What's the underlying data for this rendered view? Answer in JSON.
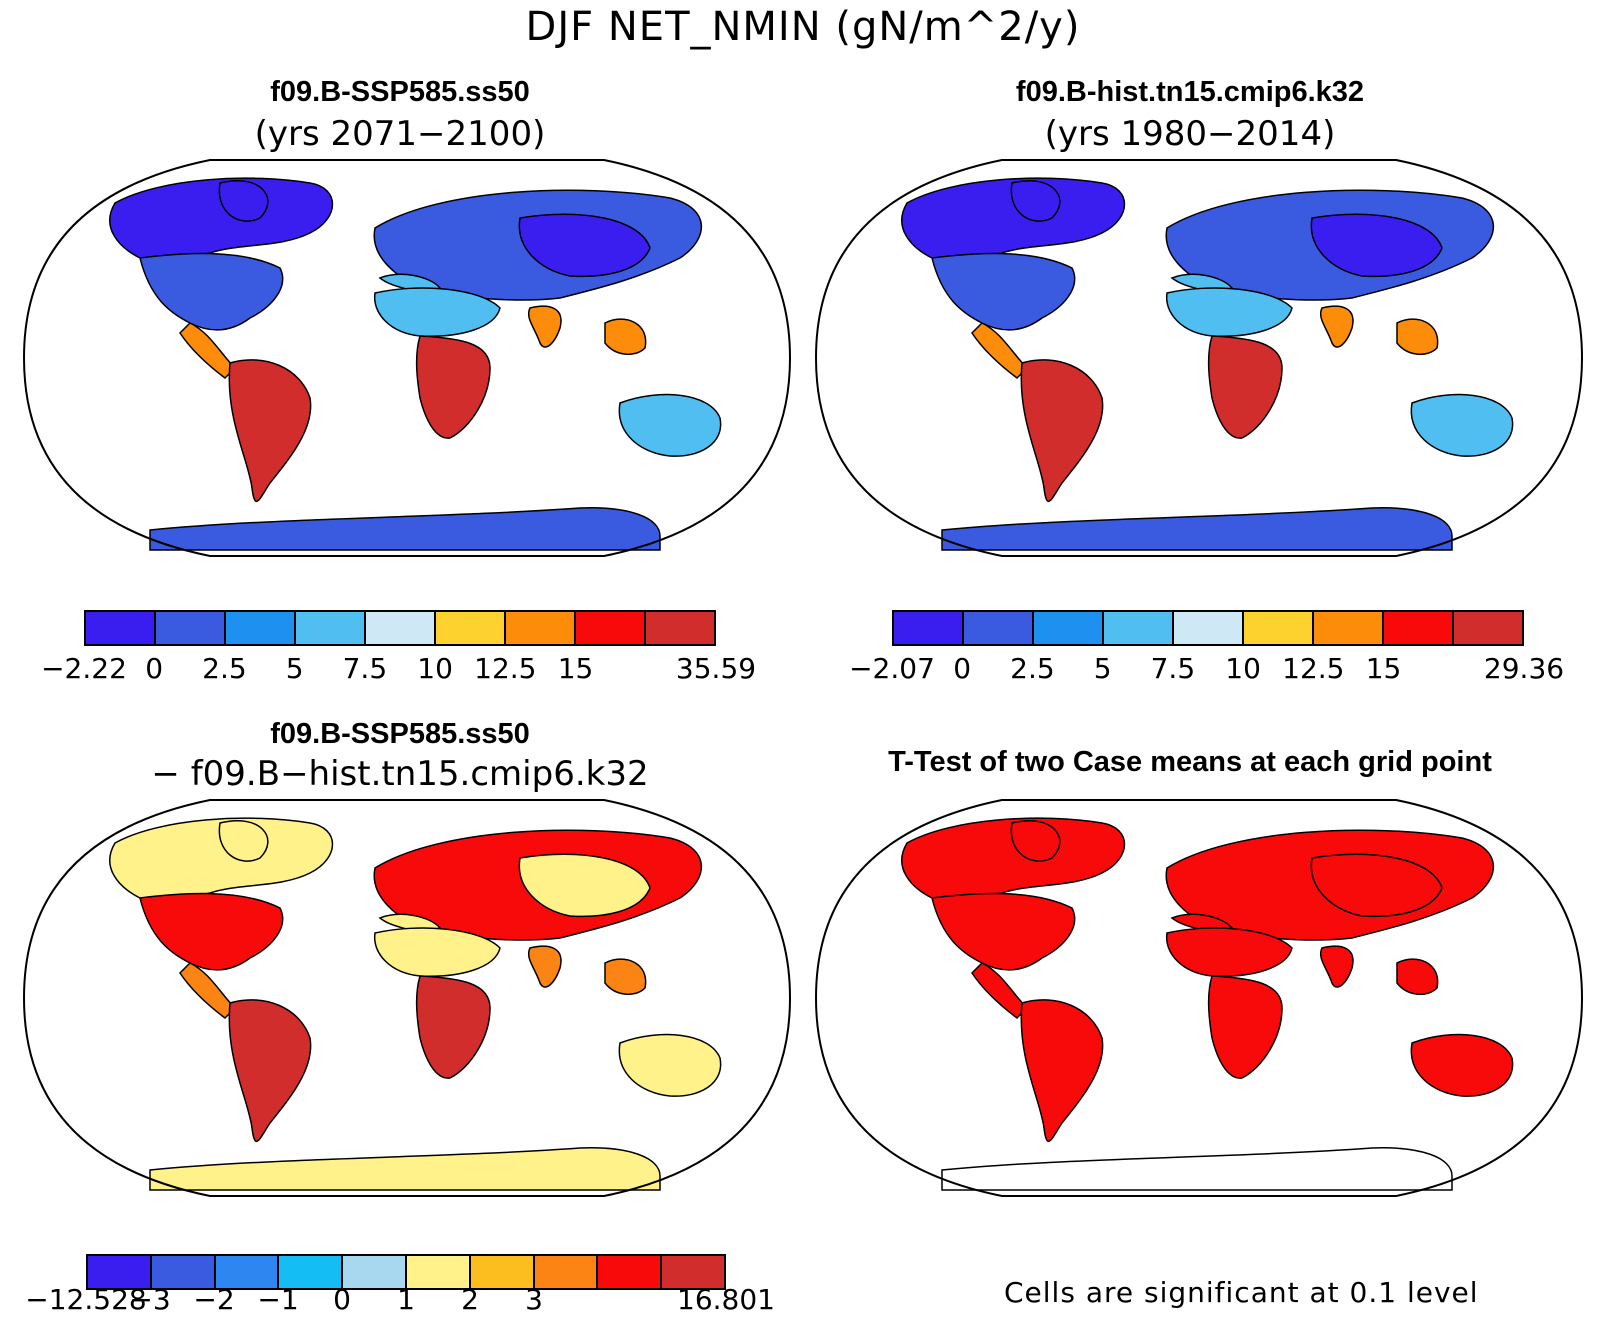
{
  "title": "DJF NET_NMIN (gN/m^2/y)",
  "panels": {
    "p1": {
      "title": "f09.B-SSP585.ss50",
      "subtitle": "(yrs 2071−2100)"
    },
    "p2": {
      "title": "f09.B-hist.tn15.cmip6.k32",
      "subtitle": "(yrs 1980−2014)"
    },
    "p3": {
      "title": "f09.B-SSP585.ss50",
      "subtitle": "− f09.B−hist.tn15.cmip6.k32"
    },
    "p4": {
      "title": "T-Test of two Case means at each grid point",
      "note": "Cells are significant at 0.1 level"
    }
  },
  "colorbars": {
    "cb1": {
      "colors": [
        "#3a1ef0",
        "#3a5ae0",
        "#1e90f0",
        "#50bef0",
        "#cfe8f5",
        "#fdd22e",
        "#fd8c0a",
        "#f80a0a",
        "#d22d2d"
      ],
      "labels": [
        "−2.22",
        "0",
        "2.5",
        "5",
        "7.5",
        "10",
        "12.5",
        "15",
        "35.59"
      ]
    },
    "cb2": {
      "colors": [
        "#3a1ef0",
        "#3a5ae0",
        "#1e90f0",
        "#50bef0",
        "#cfe8f5",
        "#fdd22e",
        "#fd8c0a",
        "#f80a0a",
        "#d22d2d"
      ],
      "labels": [
        "−2.07",
        "0",
        "2.5",
        "5",
        "7.5",
        "10",
        "12.5",
        "15",
        "29.36"
      ]
    },
    "cb3": {
      "colors": [
        "#3a1ef0",
        "#3a5ae0",
        "#2e86f0",
        "#14bef5",
        "#a8d8f0",
        "#fff28a",
        "#fbbe1e",
        "#fb8414",
        "#f80a0a",
        "#d22d2d"
      ],
      "labels": [
        "−12.528",
        "−3",
        "−2",
        "−1",
        "0",
        "1",
        "2",
        "3",
        "16.801"
      ]
    }
  },
  "map_fills": {
    "p1": {
      "ocean": "#ffffff",
      "high_lat": "#3a1ef0",
      "mid_lat": "#3a5ae0",
      "subtrop": "#50bef0",
      "tropics": "#d22d2d",
      "warm": "#fd8c0a",
      "antarctica": "#3a5ae0"
    },
    "p2": {
      "ocean": "#ffffff",
      "high_lat": "#3a1ef0",
      "mid_lat": "#3a5ae0",
      "subtrop": "#50bef0",
      "tropics": "#d22d2d",
      "warm": "#fd8c0a",
      "antarctica": "#3a5ae0"
    },
    "p3": {
      "ocean": "#ffffff",
      "high_lat": "#fff28a",
      "mid_lat": "#f80a0a",
      "subtrop": "#fff28a",
      "tropics": "#d22d2d",
      "warm": "#fb8414",
      "antarctica": "#fff28a"
    },
    "p4": {
      "ocean": "#ffffff",
      "high_lat": "#f80a0a",
      "mid_lat": "#f80a0a",
      "subtrop": "#f80a0a",
      "tropics": "#f80a0a",
      "warm": "#f80a0a",
      "antarctica": "#ffffff"
    }
  }
}
